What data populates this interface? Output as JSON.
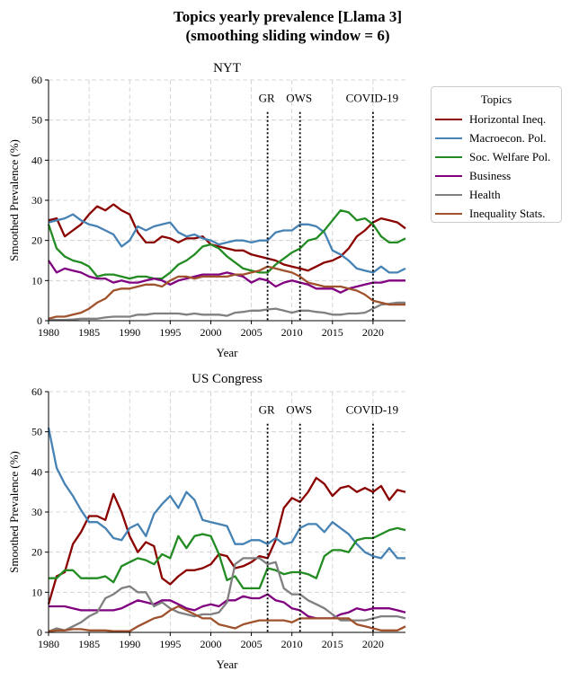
{
  "figure": {
    "title_line1": "Topics yearly prevalence [Llama 3]",
    "title_line2": "(smoothing sliding window = 6)"
  },
  "legend": {
    "title": "Topics"
  },
  "colors": {
    "Horizontal Ineq.": "#8b0000",
    "Macroecon. Pol.": "#4682b4",
    "Soc. Welfare Pol.": "#228b22",
    "Business": "#800080",
    "Health": "#808080",
    "Inequality Stats.": "#a0522d"
  },
  "chart_data": [
    {
      "type": "line",
      "title": "NYT",
      "xlabel": "Year",
      "ylabel": "Smoothed Prevalence (%)",
      "xlim": [
        1980,
        2024
      ],
      "ylim": [
        0,
        60
      ],
      "xticks": [
        1980,
        1985,
        1990,
        1995,
        2000,
        2005,
        2010,
        2015,
        2020
      ],
      "yticks": [
        0,
        10,
        20,
        30,
        40,
        50,
        60
      ],
      "grid": true,
      "events": [
        {
          "label": "GR",
          "x": 2007
        },
        {
          "label": "OWS",
          "x": 2011
        },
        {
          "label": "COVID-19",
          "x": 2020
        }
      ],
      "x": [
        1980,
        1981,
        1982,
        1983,
        1984,
        1985,
        1986,
        1987,
        1988,
        1989,
        1990,
        1991,
        1992,
        1993,
        1994,
        1995,
        1996,
        1997,
        1998,
        1999,
        2000,
        2001,
        2002,
        2003,
        2004,
        2005,
        2006,
        2007,
        2008,
        2009,
        2010,
        2011,
        2012,
        2013,
        2014,
        2015,
        2016,
        2017,
        2018,
        2019,
        2020,
        2021,
        2022,
        2023,
        2024
      ],
      "series": [
        {
          "name": "Horizontal Ineq.",
          "values": [
            25,
            25.5,
            21,
            22.5,
            24,
            26.5,
            28.5,
            27.5,
            29,
            27.5,
            26.5,
            22,
            19.5,
            19.5,
            21,
            20.5,
            19.5,
            20.5,
            20.5,
            21,
            19,
            18.5,
            18,
            17.5,
            17.5,
            16.5,
            16,
            15.5,
            15,
            14,
            13.5,
            13,
            12.5,
            13.5,
            14.5,
            15,
            16,
            18,
            21,
            22.5,
            24.5,
            25.5,
            25,
            24.5,
            23
          ]
        },
        {
          "name": "Macroecon. Pol.",
          "values": [
            24.5,
            25,
            25.5,
            26.5,
            25,
            24,
            23.5,
            22.5,
            21.5,
            18.5,
            20,
            23.5,
            22.5,
            23.5,
            24,
            24.5,
            22,
            21,
            21.5,
            20.5,
            20,
            19,
            19.5,
            20,
            20,
            19.5,
            20,
            20,
            22,
            22.5,
            22.5,
            24,
            24,
            23.5,
            22,
            17.5,
            16.5,
            15,
            13,
            12.5,
            12,
            13.5,
            12,
            12,
            13
          ]
        },
        {
          "name": "Soc. Welfare Pol.",
          "values": [
            24,
            18,
            16,
            15,
            14.5,
            13.5,
            11,
            11.5,
            11.5,
            11,
            10.5,
            11,
            11,
            10.5,
            10.5,
            12,
            14,
            15,
            16.5,
            18.5,
            19,
            18,
            16,
            14.5,
            13,
            12.5,
            12,
            12,
            14,
            15.5,
            17,
            18,
            20,
            20.5,
            22.5,
            25,
            27.5,
            27,
            25,
            25.5,
            24,
            21,
            19.5,
            19.5,
            20.5
          ]
        },
        {
          "name": "Business",
          "values": [
            15,
            12,
            13,
            12.5,
            12,
            11,
            10.5,
            10.5,
            9.5,
            10,
            9.5,
            9.5,
            10,
            10.5,
            10,
            9,
            10,
            10.5,
            11,
            11.5,
            11.5,
            11.5,
            12,
            11.5,
            11,
            9.5,
            10.5,
            10,
            8.5,
            9.5,
            10,
            9.5,
            9,
            8,
            8,
            8,
            7,
            8,
            8.5,
            9,
            9.5,
            9.5,
            10,
            10,
            10
          ]
        },
        {
          "name": "Health",
          "values": [
            0.2,
            0.2,
            0.2,
            0.3,
            0.5,
            0.5,
            0.5,
            0.8,
            1,
            1,
            1,
            1.5,
            1.5,
            1.8,
            1.8,
            1.8,
            1.8,
            1.5,
            1.8,
            1.5,
            1.5,
            1.5,
            1.2,
            2,
            2.2,
            2.5,
            2.5,
            2.8,
            3,
            2.5,
            2,
            2.5,
            2.5,
            2.2,
            2,
            1.5,
            1.5,
            1.8,
            1.8,
            2,
            3,
            4,
            4.2,
            4.5,
            4.5
          ]
        },
        {
          "name": "Inequality Stats.",
          "values": [
            0.5,
            1,
            1,
            1.5,
            2,
            3,
            4.5,
            5.5,
            7.5,
            8,
            8,
            8.5,
            9,
            9,
            8.5,
            10,
            11,
            11,
            10.5,
            11,
            11,
            11,
            11,
            11.5,
            11.5,
            12,
            12.5,
            13.5,
            13,
            12.5,
            12,
            11,
            9.5,
            9,
            8.5,
            8.5,
            8.5,
            8,
            7.5,
            6.5,
            5,
            4.5,
            4,
            4,
            4
          ]
        }
      ]
    },
    {
      "type": "line",
      "title": "US Congress",
      "xlabel": "Year",
      "ylabel": "Smoothed Prevalence (%)",
      "xlim": [
        1980,
        2024
      ],
      "ylim": [
        0,
        60
      ],
      "xticks": [
        1980,
        1985,
        1990,
        1995,
        2000,
        2005,
        2010,
        2015,
        2020
      ],
      "yticks": [
        0,
        10,
        20,
        30,
        40,
        50,
        60
      ],
      "grid": true,
      "events": [
        {
          "label": "GR",
          "x": 2007
        },
        {
          "label": "OWS",
          "x": 2011
        },
        {
          "label": "COVID-19",
          "x": 2020
        }
      ],
      "x": [
        1980,
        1981,
        1982,
        1983,
        1984,
        1985,
        1986,
        1987,
        1988,
        1989,
        1990,
        1991,
        1992,
        1993,
        1994,
        1995,
        1996,
        1997,
        1998,
        1999,
        2000,
        2001,
        2002,
        2003,
        2004,
        2005,
        2006,
        2007,
        2008,
        2009,
        2010,
        2011,
        2012,
        2013,
        2014,
        2015,
        2016,
        2017,
        2018,
        2019,
        2020,
        2021,
        2022,
        2023,
        2024
      ],
      "series": [
        {
          "name": "Horizontal Ineq.",
          "values": [
            7,
            14,
            15,
            22,
            25,
            29,
            29,
            28,
            34.5,
            30,
            24,
            20,
            22.5,
            21.5,
            13.5,
            12,
            14,
            15.5,
            15.5,
            16,
            17,
            19.5,
            19,
            16,
            16.5,
            17.5,
            19,
            18.5,
            23,
            31,
            33.5,
            32.5,
            35,
            38.5,
            37,
            34,
            36,
            36.5,
            35,
            36,
            35,
            36.5,
            33,
            35.5,
            35
          ]
        },
        {
          "name": "Macroecon. Pol.",
          "values": [
            51,
            41,
            37,
            34,
            30.5,
            27.5,
            27.5,
            26,
            23.5,
            23,
            26,
            27,
            24,
            29.5,
            32,
            34,
            31,
            35,
            33,
            28,
            27.5,
            27,
            26.5,
            22,
            22,
            23,
            23,
            22,
            23.5,
            22,
            22.5,
            26,
            27,
            27,
            25,
            27.5,
            26,
            24.5,
            22,
            20,
            19,
            18.5,
            21,
            18.5,
            18.5
          ]
        },
        {
          "name": "Soc. Welfare Pol.",
          "values": [
            13.5,
            13.5,
            15.5,
            15.5,
            13.5,
            13.5,
            13.5,
            14,
            12.5,
            16.5,
            17.5,
            18.5,
            18,
            17,
            19.5,
            18.5,
            24,
            21,
            24,
            24.5,
            24,
            19.5,
            13,
            14,
            11,
            11,
            11,
            16,
            15.5,
            14.5,
            15,
            15,
            14.5,
            13.5,
            19,
            20.5,
            20.5,
            20,
            23,
            23.5,
            23.5,
            24.5,
            25.5,
            26,
            25.5
          ]
        },
        {
          "name": "Business",
          "values": [
            6.5,
            6.5,
            6.5,
            6,
            5.5,
            5.5,
            5.5,
            5.5,
            5.5,
            6,
            7,
            8,
            7.5,
            7,
            8,
            8,
            7,
            6,
            5.5,
            6.5,
            7,
            6.5,
            8,
            8,
            9,
            8.5,
            8.5,
            9.5,
            8,
            7.5,
            6,
            5.5,
            4,
            3.5,
            3.5,
            3.5,
            4.5,
            5,
            6,
            5.5,
            6,
            6,
            6,
            5.5,
            5
          ]
        },
        {
          "name": "Health",
          "values": [
            0.2,
            1,
            0.5,
            1.5,
            2.5,
            4,
            5,
            8.5,
            9.5,
            11,
            11.5,
            10,
            10,
            6.5,
            7.5,
            6,
            5,
            4.5,
            4,
            4.5,
            4.5,
            5,
            7.5,
            17,
            18.5,
            18.5,
            18.5,
            17,
            17.5,
            11,
            9.5,
            9.5,
            8,
            7,
            6,
            4.5,
            3,
            3,
            3,
            3,
            3.5,
            4,
            4,
            4,
            3.5
          ]
        },
        {
          "name": "Inequality Stats.",
          "values": [
            0.3,
            0.5,
            0.5,
            0.8,
            0.8,
            0.5,
            0.5,
            0.5,
            0.3,
            0.3,
            0.3,
            1.5,
            2.5,
            3.5,
            4,
            5.5,
            6.5,
            5.5,
            4.5,
            3.5,
            3.5,
            2,
            1.5,
            1,
            2,
            2.5,
            3,
            3,
            3,
            3,
            2.5,
            3.5,
            3.5,
            3.5,
            3.5,
            3.5,
            3.5,
            3.5,
            2,
            1.5,
            1,
            0.5,
            0.5,
            0.5,
            1.5
          ]
        }
      ]
    }
  ]
}
